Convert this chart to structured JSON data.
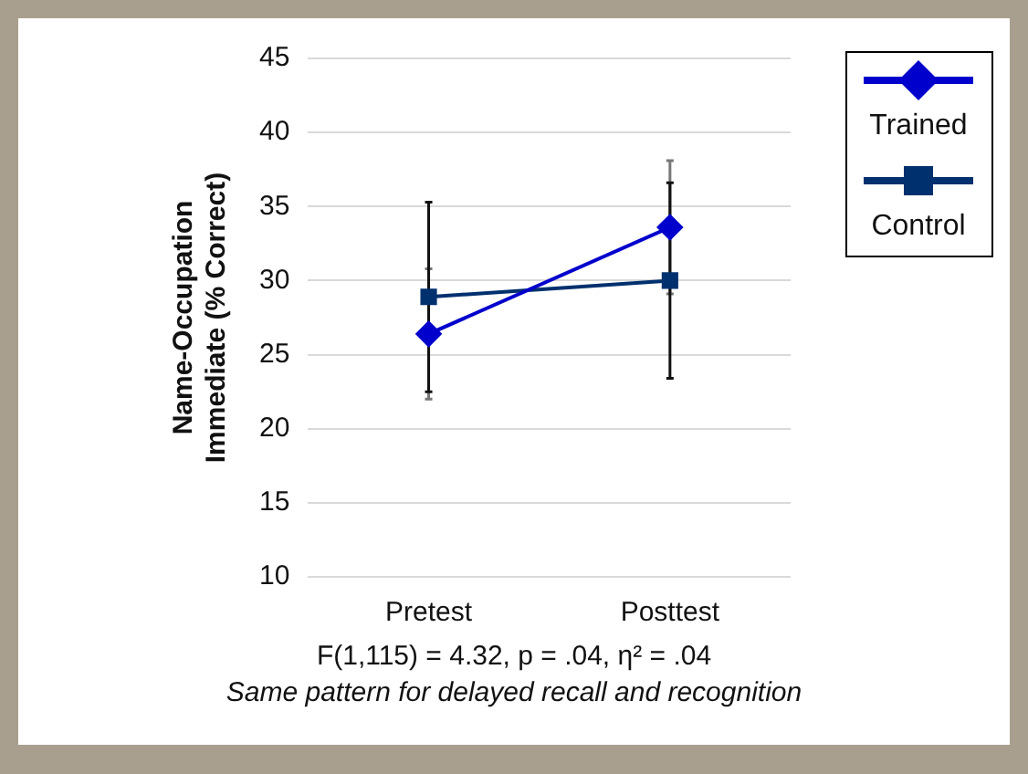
{
  "chart_data": {
    "type": "line",
    "ylabel": "Name-Occupation\nImmediate (% Correct)",
    "categories": [
      "Pretest",
      "Posttest"
    ],
    "series": [
      {
        "name": "Trained",
        "color": "#0000cc",
        "values": [
          26.4,
          33.6
        ],
        "errors": [
          4.4,
          4.5
        ],
        "marker": "diamond"
      },
      {
        "name": "Control",
        "color": "#00306e",
        "values": [
          28.9,
          30.0
        ],
        "errors": [
          6.4,
          6.6
        ],
        "marker": "square"
      }
    ],
    "ylim": [
      10,
      45
    ],
    "yticks": [
      10,
      15,
      20,
      25,
      30,
      35,
      40,
      45
    ],
    "grid": "y",
    "legend": "top right",
    "annotations": [
      "F(1,115) = 4.32, p = .04, η² = .04",
      "Same pattern for delayed recall and recognition"
    ]
  }
}
